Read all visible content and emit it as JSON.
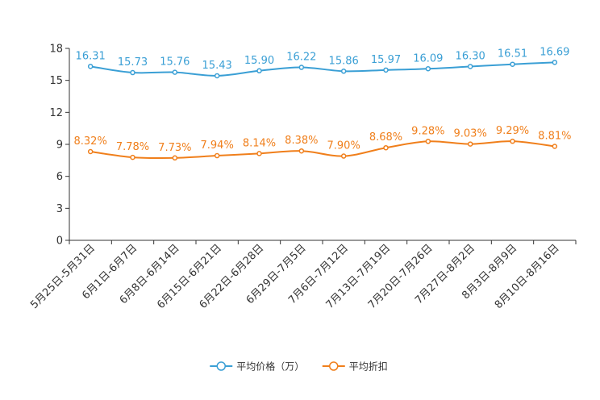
{
  "chart_data": {
    "type": "line",
    "title": "",
    "xlabel": "",
    "ylabel": "",
    "ylim": [
      0,
      18
    ],
    "yticks": [
      0,
      3,
      6,
      9,
      12,
      15,
      18
    ],
    "grid": false,
    "legend": "bottom-center",
    "categories": [
      "5月25日-5月31日",
      "6月1日-6月7日",
      "6月8日-6月14日",
      "6月15日-6月21日",
      "6月22日-6月28日",
      "6月29日-7月5日",
      "7月6日-7月12日",
      "7月13日-7月19日",
      "7月20日-7月26日",
      "7月27日-8月2日",
      "8月3日-8月9日",
      "8月10日-8月16日"
    ],
    "series": [
      {
        "name": "平均价格（万）",
        "color": "#3a9fd5",
        "values": [
          16.31,
          15.73,
          15.76,
          15.43,
          15.9,
          16.22,
          15.86,
          15.97,
          16.09,
          16.3,
          16.51,
          16.69
        ],
        "labels": [
          "16.31",
          "15.73",
          "15.76",
          "15.43",
          "15.90",
          "16.22",
          "15.86",
          "15.97",
          "16.09",
          "16.30",
          "16.51",
          "16.69"
        ]
      },
      {
        "name": "平均折扣",
        "color": "#f07f1b",
        "values": [
          8.32,
          7.78,
          7.73,
          7.94,
          8.14,
          8.38,
          7.9,
          8.68,
          9.28,
          9.03,
          9.29,
          8.81
        ],
        "labels": [
          "8.32%",
          "7.78%",
          "7.73%",
          "7.94%",
          "8.14%",
          "8.38%",
          "7.90%",
          "8.68%",
          "9.28%",
          "9.03%",
          "9.29%",
          "8.81%"
        ]
      }
    ]
  }
}
